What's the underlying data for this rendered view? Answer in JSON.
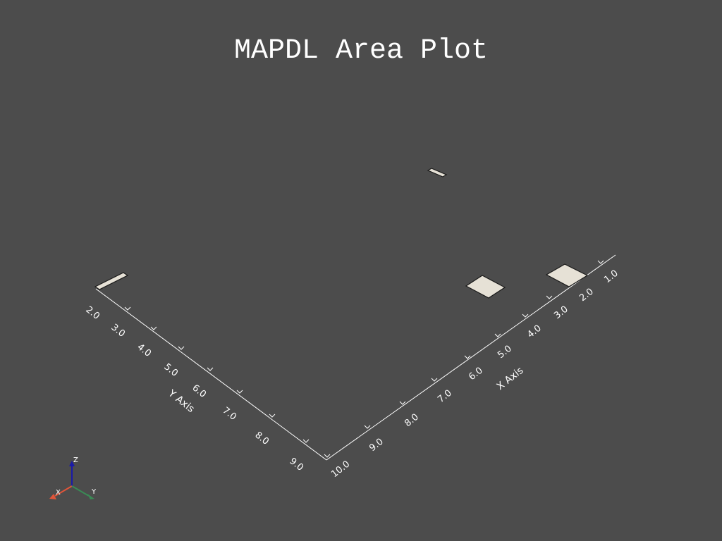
{
  "title": "MAPDL Area Plot",
  "colors": {
    "background": "#4c4c4c",
    "area_fill": "#e6e1d6",
    "area_edge": "#1a1a1a",
    "axis_line": "#ffffff",
    "triad_x": "#e0553a",
    "triad_y": "#3a8a55",
    "triad_z": "#1a1aa8"
  },
  "x_axis": {
    "title": "X Axis",
    "ticks": [
      "1.0",
      "2.0",
      "3.0",
      "4.0",
      "5.0",
      "6.0",
      "7.0",
      "8.0",
      "9.0",
      "10.0"
    ]
  },
  "y_axis": {
    "title": "Y Axis",
    "ticks": [
      "2.0",
      "3.0",
      "4.0",
      "5.0",
      "6.0",
      "7.0",
      "8.0",
      "9.0"
    ]
  },
  "triad": {
    "x_label": "X",
    "y_label": "Y",
    "z_label": "Z"
  }
}
